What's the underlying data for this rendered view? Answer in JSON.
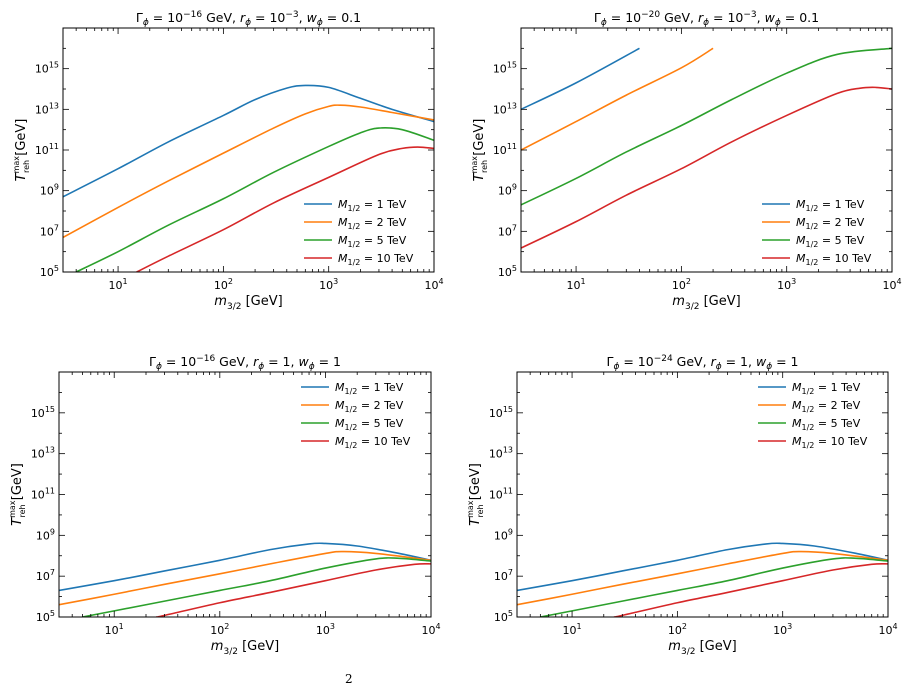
{
  "colors": {
    "blue": "#1f77b4",
    "orange": "#ff7f0e",
    "green": "#2ca02c",
    "red": "#d62728"
  },
  "footnote": "2",
  "chart_data": [
    {
      "type": "line",
      "title": {
        "pre": "Γ",
        "sub1": "ϕ",
        "eq1": " = 10",
        "sup1": "−16",
        "mid1": " GeV, ",
        "r": "r",
        "sub2": "ϕ",
        "eq2": " = 10",
        "sup2": "−3",
        "mid2": ", ",
        "w": "w",
        "sub3": "ϕ",
        "eq3": " = 0.1"
      },
      "xlabel": {
        "m": "m",
        "sub": "3/2",
        "unit": " [GeV]"
      },
      "ylabel": {
        "T": "T",
        "sup": "max",
        "sub": "reh",
        "unit": " [GeV]"
      },
      "xscale": "log",
      "yscale": "log",
      "xlim": [
        3,
        10000
      ],
      "ylim": [
        100000,
        1e+17
      ],
      "xticks": [
        {
          "base": "10",
          "exp": "1",
          "value": 10
        },
        {
          "base": "10",
          "exp": "2",
          "value": 100
        },
        {
          "base": "10",
          "exp": "3",
          "value": 1000
        },
        {
          "base": "10",
          "exp": "4",
          "value": 10000
        }
      ],
      "yticks": [
        {
          "base": "10",
          "exp": "5",
          "value": 100000.0
        },
        {
          "base": "10",
          "exp": "7",
          "value": 10000000.0
        },
        {
          "base": "10",
          "exp": "9",
          "value": 1000000000.0
        },
        {
          "base": "10",
          "exp": "11",
          "value": 100000000000.0
        },
        {
          "base": "10",
          "exp": "13",
          "value": 10000000000000.0
        },
        {
          "base": "10",
          "exp": "15",
          "value": 1000000000000000.0
        }
      ],
      "legend_position": "lower-right",
      "series": [
        {
          "name": {
            "M": "M",
            "sub": "1/2",
            "val": " = 1 TeV"
          },
          "color": "#1f77b4",
          "x": [
            3,
            10,
            30,
            100,
            200,
            400,
            600,
            1000,
            2000,
            4000,
            10000
          ],
          "y": [
            500000000.0,
            12000000000.0,
            250000000000.0,
            5000000000000.0,
            30000000000000.0,
            110000000000000.0,
            150000000000000.0,
            120000000000000.0,
            35000000000000.0,
            10000000000000.0,
            2500000000000.0
          ]
        },
        {
          "name": {
            "M": "M",
            "sub": "1/2",
            "val": " = 2 TeV"
          },
          "color": "#ff7f0e",
          "x": [
            3,
            10,
            30,
            100,
            300,
            600,
            1000,
            1300,
            2000,
            4000,
            10000
          ],
          "y": [
            5000000.0,
            150000000.0,
            3000000000.0,
            70000000000.0,
            1200000000000.0,
            6000000000000.0,
            14000000000000.0,
            16000000000000.0,
            13000000000000.0,
            7000000000000.0,
            3000000000000.0
          ]
        },
        {
          "name": {
            "M": "M",
            "sub": "1/2",
            "val": " = 5 TeV"
          },
          "color": "#2ca02c",
          "x": [
            4,
            10,
            30,
            100,
            300,
            1000,
            2000,
            3000,
            5000,
            10000
          ],
          "y": [
            100000.0,
            1000000.0,
            20000000.0,
            400000000.0,
            8000000000.0,
            150000000000.0,
            700000000000.0,
            1200000000000.0,
            1000000000000.0,
            300000000000.0
          ]
        },
        {
          "name": {
            "M": "M",
            "sub": "1/2",
            "val": " = 10 TeV"
          },
          "color": "#d62728",
          "x": [
            15,
            30,
            100,
            300,
            1000,
            3000,
            5000,
            7000,
            10000
          ],
          "y": [
            100000.0,
            600000.0,
            12000000.0,
            250000000.0,
            4500000000.0,
            60000000000.0,
            120000000000.0,
            140000000000.0,
            120000000000.0
          ]
        }
      ]
    },
    {
      "type": "line",
      "title": {
        "pre": "Γ",
        "sub1": "ϕ",
        "eq1": " = 10",
        "sup1": "−20",
        "mid1": " GeV, ",
        "r": "r",
        "sub2": "ϕ",
        "eq2": " = 10",
        "sup2": "−3",
        "mid2": ", ",
        "w": "w",
        "sub3": "ϕ",
        "eq3": " = 0.1"
      },
      "xlabel": {
        "m": "m",
        "sub": "3/2",
        "unit": " [GeV]"
      },
      "ylabel": {
        "T": "T",
        "sup": "max",
        "sub": "reh",
        "unit": " [GeV]"
      },
      "xscale": "log",
      "yscale": "log",
      "xlim": [
        3,
        10000
      ],
      "ylim": [
        100000,
        1e+17
      ],
      "xticks": [
        {
          "base": "10",
          "exp": "1",
          "value": 10
        },
        {
          "base": "10",
          "exp": "2",
          "value": 100
        },
        {
          "base": "10",
          "exp": "3",
          "value": 1000
        },
        {
          "base": "10",
          "exp": "4",
          "value": 10000
        }
      ],
      "yticks": [
        {
          "base": "10",
          "exp": "5",
          "value": 100000.0
        },
        {
          "base": "10",
          "exp": "7",
          "value": 10000000.0
        },
        {
          "base": "10",
          "exp": "9",
          "value": 1000000000.0
        },
        {
          "base": "10",
          "exp": "11",
          "value": 100000000000.0
        },
        {
          "base": "10",
          "exp": "13",
          "value": 10000000000000.0
        },
        {
          "base": "10",
          "exp": "15",
          "value": 1000000000000000.0
        }
      ],
      "legend_position": "lower-right",
      "series": [
        {
          "name": {
            "M": "M",
            "sub": "1/2",
            "val": " = 1 TeV"
          },
          "color": "#1f77b4",
          "x": [
            3,
            10,
            40
          ],
          "y": [
            10000000000000.0,
            200000000000000.0,
            1e+16
          ]
        },
        {
          "name": {
            "M": "M",
            "sub": "1/2",
            "val": " = 2 TeV"
          },
          "color": "#ff7f0e",
          "x": [
            3,
            10,
            30,
            100,
            200
          ],
          "y": [
            100000000000.0,
            2500000000000.0,
            50000000000000.0,
            1100000000000000.0,
            1e+16
          ]
        },
        {
          "name": {
            "M": "M",
            "sub": "1/2",
            "val": " = 5 TeV"
          },
          "color": "#2ca02c",
          "x": [
            3,
            10,
            30,
            100,
            300,
            1000,
            3000,
            10000
          ],
          "y": [
            200000000.0,
            4000000000.0,
            80000000000.0,
            1600000000000.0,
            30000000000000.0,
            600000000000000.0,
            5000000000000000.0,
            1e+16
          ]
        },
        {
          "name": {
            "M": "M",
            "sub": "1/2",
            "val": " = 10 TeV"
          },
          "color": "#d62728",
          "x": [
            3,
            10,
            30,
            100,
            300,
            1000,
            3000,
            5000,
            7000,
            10000
          ],
          "y": [
            1500000.0,
            30000000.0,
            600000000.0,
            12000000000.0,
            250000000000.0,
            5000000000000.0,
            60000000000000.0,
            110000000000000.0,
            120000000000000.0,
            100000000000000.0
          ]
        }
      ]
    },
    {
      "type": "line",
      "title": {
        "pre": "Γ",
        "sub1": "ϕ",
        "eq1": " = 10",
        "sup1": "−16",
        "mid1": " GeV, ",
        "r": "r",
        "sub2": "ϕ",
        "eq2": " = 1",
        "sup2": "",
        "mid2": ", ",
        "w": "w",
        "sub3": "ϕ",
        "eq3": " = 1"
      },
      "xlabel": {
        "m": "m",
        "sub": "3/2",
        "unit": " [GeV]"
      },
      "ylabel": {
        "T": "T",
        "sup": "max",
        "sub": "reh",
        "unit": " [GeV]"
      },
      "xscale": "log",
      "yscale": "log",
      "xlim": [
        3,
        10000
      ],
      "ylim": [
        100000,
        1e+17
      ],
      "xticks": [
        {
          "base": "10",
          "exp": "1",
          "value": 10
        },
        {
          "base": "10",
          "exp": "2",
          "value": 100
        },
        {
          "base": "10",
          "exp": "3",
          "value": 1000
        },
        {
          "base": "10",
          "exp": "4",
          "value": 10000
        }
      ],
      "yticks": [
        {
          "base": "10",
          "exp": "5",
          "value": 100000.0
        },
        {
          "base": "10",
          "exp": "7",
          "value": 10000000.0
        },
        {
          "base": "10",
          "exp": "9",
          "value": 1000000000.0
        },
        {
          "base": "10",
          "exp": "11",
          "value": 100000000000.0
        },
        {
          "base": "10",
          "exp": "13",
          "value": 10000000000000.0
        },
        {
          "base": "10",
          "exp": "15",
          "value": 1000000000000000.0
        }
      ],
      "legend_position": "upper-right",
      "series": [
        {
          "name": {
            "M": "M",
            "sub": "1/2",
            "val": " = 1 TeV"
          },
          "color": "#1f77b4",
          "x": [
            3,
            10,
            30,
            100,
            300,
            700,
            1000,
            2000,
            5000,
            10000
          ],
          "y": [
            2000000.0,
            6000000.0,
            18000000.0,
            60000000.0,
            200000000.0,
            380000000.0,
            400000000.0,
            300000000.0,
            130000000.0,
            60000000.0
          ]
        },
        {
          "name": {
            "M": "M",
            "sub": "1/2",
            "val": " = 2 TeV"
          },
          "color": "#ff7f0e",
          "x": [
            3,
            10,
            30,
            100,
            300,
            1000,
            1500,
            3000,
            10000
          ],
          "y": [
            400000.0,
            1300000.0,
            4000000.0,
            13000000.0,
            40000000.0,
            130000000.0,
            160000000.0,
            130000000.0,
            60000000.0
          ]
        },
        {
          "name": {
            "M": "M",
            "sub": "1/2",
            "val": " = 5 TeV"
          },
          "color": "#2ca02c",
          "x": [
            5,
            10,
            30,
            100,
            300,
            1000,
            3000,
            5000,
            10000
          ],
          "y": [
            100000.0,
            200000.0,
            600000.0,
            2000000.0,
            6000000.0,
            25000000.0,
            70000000.0,
            75000000.0,
            55000000.0
          ]
        },
        {
          "name": {
            "M": "M",
            "sub": "1/2",
            "val": " = 10 TeV"
          },
          "color": "#d62728",
          "x": [
            25,
            30,
            100,
            300,
            1000,
            3000,
            7000,
            10000
          ],
          "y": [
            100000.0,
            120000.0,
            500000.0,
            1600000.0,
            6000000.0,
            20000000.0,
            38000000.0,
            40000000.0
          ]
        }
      ]
    },
    {
      "type": "line",
      "title": {
        "pre": "Γ",
        "sub1": "ϕ",
        "eq1": " = 10",
        "sup1": "−24",
        "mid1": " GeV, ",
        "r": "r",
        "sub2": "ϕ",
        "eq2": " = 1",
        "sup2": "",
        "mid2": ", ",
        "w": "w",
        "sub3": "ϕ",
        "eq3": " = 1"
      },
      "xlabel": {
        "m": "m",
        "sub": "3/2",
        "unit": " [GeV]"
      },
      "ylabel": {
        "T": "T",
        "sup": "max",
        "sub": "reh",
        "unit": " [GeV]"
      },
      "xscale": "log",
      "yscale": "log",
      "xlim": [
        3,
        10000
      ],
      "ylim": [
        100000,
        1e+17
      ],
      "xticks": [
        {
          "base": "10",
          "exp": "1",
          "value": 10
        },
        {
          "base": "10",
          "exp": "2",
          "value": 100
        },
        {
          "base": "10",
          "exp": "3",
          "value": 1000
        },
        {
          "base": "10",
          "exp": "4",
          "value": 10000
        }
      ],
      "yticks": [
        {
          "base": "10",
          "exp": "5",
          "value": 100000.0
        },
        {
          "base": "10",
          "exp": "7",
          "value": 10000000.0
        },
        {
          "base": "10",
          "exp": "9",
          "value": 1000000000.0
        },
        {
          "base": "10",
          "exp": "11",
          "value": 100000000000.0
        },
        {
          "base": "10",
          "exp": "13",
          "value": 10000000000000.0
        },
        {
          "base": "10",
          "exp": "15",
          "value": 1000000000000000.0
        }
      ],
      "legend_position": "upper-right",
      "series": [
        {
          "name": {
            "M": "M",
            "sub": "1/2",
            "val": " = 1 TeV"
          },
          "color": "#1f77b4",
          "x": [
            3,
            10,
            30,
            100,
            300,
            700,
            1000,
            2000,
            5000,
            10000
          ],
          "y": [
            2000000.0,
            6000000.0,
            18000000.0,
            60000000.0,
            200000000.0,
            380000000.0,
            400000000.0,
            300000000.0,
            130000000.0,
            60000000.0
          ]
        },
        {
          "name": {
            "M": "M",
            "sub": "1/2",
            "val": " = 2 TeV"
          },
          "color": "#ff7f0e",
          "x": [
            3,
            10,
            30,
            100,
            300,
            1000,
            1500,
            3000,
            10000
          ],
          "y": [
            400000.0,
            1300000.0,
            4000000.0,
            13000000.0,
            40000000.0,
            130000000.0,
            160000000.0,
            130000000.0,
            60000000.0
          ]
        },
        {
          "name": {
            "M": "M",
            "sub": "1/2",
            "val": " = 5 TeV"
          },
          "color": "#2ca02c",
          "x": [
            5,
            10,
            30,
            100,
            300,
            1000,
            3000,
            5000,
            10000
          ],
          "y": [
            100000.0,
            200000.0,
            600000.0,
            2000000.0,
            6000000.0,
            25000000.0,
            70000000.0,
            75000000.0,
            55000000.0
          ]
        },
        {
          "name": {
            "M": "M",
            "sub": "1/2",
            "val": " = 10 TeV"
          },
          "color": "#d62728",
          "x": [
            25,
            30,
            100,
            300,
            1000,
            3000,
            7000,
            10000
          ],
          "y": [
            100000.0,
            120000.0,
            500000.0,
            1600000.0,
            6000000.0,
            20000000.0,
            38000000.0,
            40000000.0
          ]
        }
      ]
    }
  ]
}
